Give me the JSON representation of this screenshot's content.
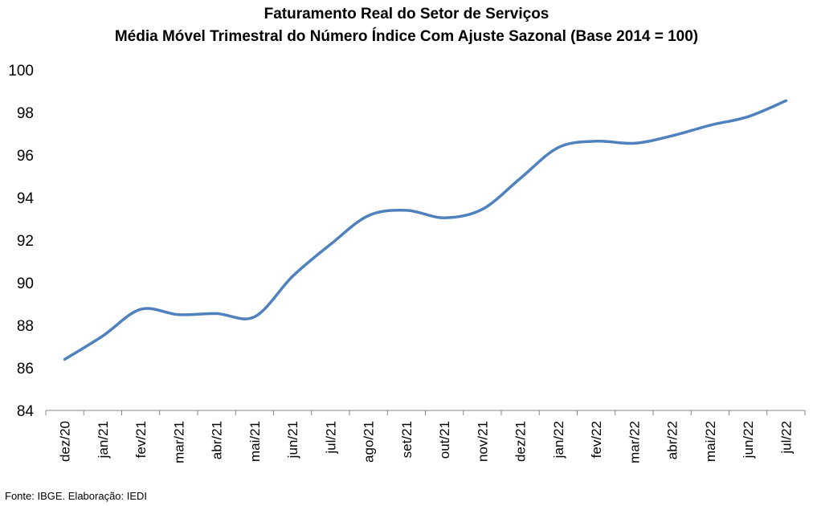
{
  "chart_data": {
    "type": "line",
    "title": "Faturamento Real do Setor de Serviços",
    "subtitle": "Média Móvel Trimestral do Número Índice Com Ajuste Sazonal (Base 2014 = 100)",
    "xlabel": "",
    "ylabel": "",
    "categories": [
      "dez/20",
      "jan/21",
      "fev/21",
      "mar/21",
      "abr/21",
      "mai/21",
      "jun/21",
      "jul/21",
      "ago/21",
      "set/21",
      "out/21",
      "nov/21",
      "dez/21",
      "jan/22",
      "fev/22",
      "mar/22",
      "abr/22",
      "mai/22",
      "jun/22",
      "jul/22"
    ],
    "series": [
      {
        "values": [
          86.4,
          87.5,
          88.75,
          88.5,
          88.55,
          88.4,
          90.3,
          91.8,
          93.15,
          93.4,
          93.05,
          93.45,
          94.9,
          96.35,
          96.65,
          96.55,
          96.9,
          97.4,
          97.8,
          98.55
        ],
        "color": "#4f81bd"
      }
    ],
    "ylim": [
      84,
      100
    ],
    "yticks": [
      84,
      86,
      88,
      90,
      92,
      94,
      96,
      98,
      100
    ],
    "grid": false,
    "legend": "none"
  },
  "source_note": "Fonte: IBGE. Elaboração: IEDI"
}
